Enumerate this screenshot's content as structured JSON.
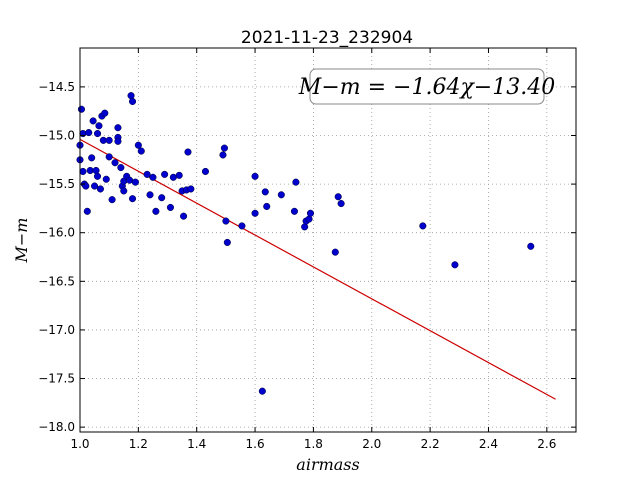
{
  "chart_data": {
    "type": "scatter",
    "title": "2021-11-23_232904",
    "xlabel": "airmass",
    "ylabel": "M−m",
    "annotation": "M−m = −1.64χ−13.40",
    "xlim": [
      1.0,
      2.7
    ],
    "ylim": [
      -18.05,
      -14.1
    ],
    "xticks": [
      1.0,
      1.2,
      1.4,
      1.6,
      1.8,
      2.0,
      2.2,
      2.4,
      2.6
    ],
    "xtick_labels": [
      "1.0",
      "1.2",
      "1.4",
      "1.6",
      "1.8",
      "2.0",
      "2.2",
      "2.4",
      "2.6"
    ],
    "yticks": [
      -14.5,
      -15.0,
      -15.5,
      -16.0,
      -16.5,
      -17.0,
      -17.5,
      -18.0
    ],
    "ytick_labels": [
      "−14.5",
      "−15.0",
      "−15.5",
      "−16.0",
      "−16.5",
      "−17.0",
      "−17.5",
      "−18.0"
    ],
    "grid": true,
    "colors": {
      "points": "#0000cc",
      "fit": "#cc0000"
    },
    "fit": {
      "slope": -1.64,
      "intercept": -13.4,
      "x_range": [
        1.0,
        2.63
      ]
    },
    "points": [
      [
        1.0,
        -15.1
      ],
      [
        1.0,
        -15.25
      ],
      [
        1.005,
        -14.73
      ],
      [
        1.01,
        -14.98
      ],
      [
        1.01,
        -15.37
      ],
      [
        1.015,
        -15.5
      ],
      [
        1.02,
        -15.52
      ],
      [
        1.025,
        -15.78
      ],
      [
        1.03,
        -14.97
      ],
      [
        1.035,
        -15.36
      ],
      [
        1.04,
        -15.23
      ],
      [
        1.045,
        -14.85
      ],
      [
        1.05,
        -15.52
      ],
      [
        1.055,
        -15.36
      ],
      [
        1.06,
        -15.42
      ],
      [
        1.06,
        -14.98
      ],
      [
        1.065,
        -14.9
      ],
      [
        1.07,
        -15.55
      ],
      [
        1.075,
        -14.8
      ],
      [
        1.08,
        -15.05
      ],
      [
        1.085,
        -14.77
      ],
      [
        1.09,
        -15.45
      ],
      [
        1.1,
        -15.05
      ],
      [
        1.1,
        -15.22
      ],
      [
        1.11,
        -15.66
      ],
      [
        1.12,
        -15.28
      ],
      [
        1.13,
        -15.02
      ],
      [
        1.13,
        -15.06
      ],
      [
        1.13,
        -14.92
      ],
      [
        1.14,
        -15.33
      ],
      [
        1.145,
        -15.52
      ],
      [
        1.15,
        -15.57
      ],
      [
        1.15,
        -15.47
      ],
      [
        1.16,
        -15.42
      ],
      [
        1.17,
        -15.46
      ],
      [
        1.175,
        -14.59
      ],
      [
        1.18,
        -14.65
      ],
      [
        1.18,
        -15.65
      ],
      [
        1.19,
        -15.48
      ],
      [
        1.2,
        -15.1
      ],
      [
        1.21,
        -15.16
      ],
      [
        1.23,
        -15.4
      ],
      [
        1.24,
        -15.61
      ],
      [
        1.25,
        -15.43
      ],
      [
        1.26,
        -15.78
      ],
      [
        1.28,
        -15.64
      ],
      [
        1.29,
        -15.4
      ],
      [
        1.31,
        -15.74
      ],
      [
        1.32,
        -15.43
      ],
      [
        1.34,
        -15.41
      ],
      [
        1.35,
        -15.57
      ],
      [
        1.355,
        -15.83
      ],
      [
        1.365,
        -15.56
      ],
      [
        1.37,
        -15.17
      ],
      [
        1.38,
        -15.55
      ],
      [
        1.43,
        -15.37
      ],
      [
        1.49,
        -15.2
      ],
      [
        1.495,
        -15.13
      ],
      [
        1.505,
        -16.1
      ],
      [
        1.5,
        -15.88
      ],
      [
        1.555,
        -15.93
      ],
      [
        1.6,
        -15.42
      ],
      [
        1.6,
        -15.8
      ],
      [
        1.625,
        -17.63
      ],
      [
        1.635,
        -15.58
      ],
      [
        1.64,
        -15.73
      ],
      [
        1.69,
        -15.61
      ],
      [
        1.735,
        -15.78
      ],
      [
        1.74,
        -15.48
      ],
      [
        1.77,
        -15.94
      ],
      [
        1.775,
        -15.88
      ],
      [
        1.785,
        -15.86
      ],
      [
        1.79,
        -15.8
      ],
      [
        1.875,
        -16.2
      ],
      [
        1.885,
        -15.63
      ],
      [
        1.895,
        -15.7
      ],
      [
        2.175,
        -15.93
      ],
      [
        2.285,
        -16.33
      ],
      [
        2.545,
        -16.14
      ]
    ]
  }
}
